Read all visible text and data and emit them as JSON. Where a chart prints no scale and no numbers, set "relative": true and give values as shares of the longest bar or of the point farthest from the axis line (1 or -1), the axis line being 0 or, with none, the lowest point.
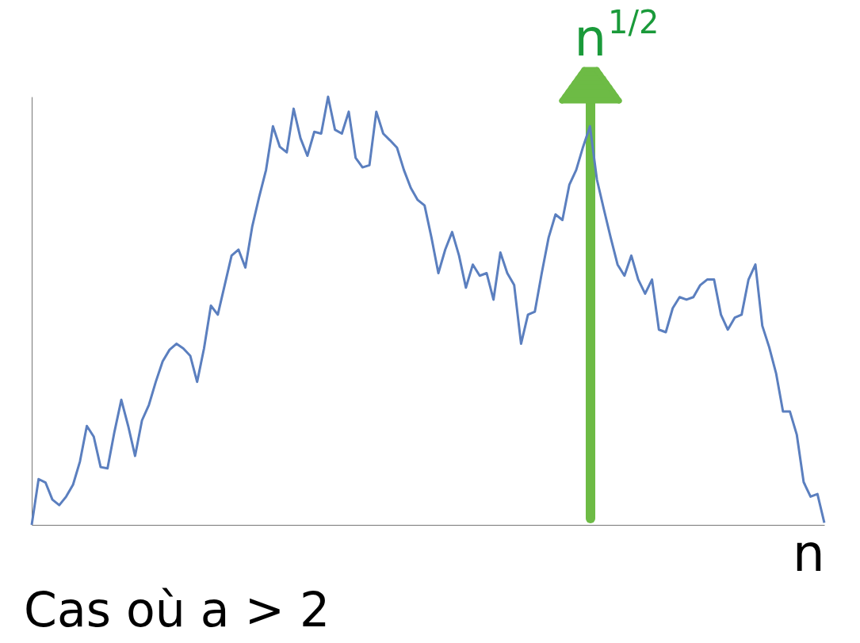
{
  "chart_data": {
    "type": "line",
    "relative": true,
    "xlabel": "n",
    "categories": [
      null,
      null,
      null,
      null,
      null,
      null,
      null,
      null,
      null,
      null,
      null,
      null,
      null,
      null,
      null,
      null,
      null,
      null,
      null,
      null,
      null,
      null,
      null,
      null,
      null,
      null,
      null,
      null,
      null,
      null,
      null,
      null,
      null,
      null,
      null,
      null,
      null,
      null,
      null,
      null,
      null,
      null,
      null,
      null,
      null,
      null,
      null,
      null,
      null,
      null,
      null,
      null,
      null,
      null,
      null,
      null,
      null,
      null,
      null,
      null,
      null,
      null,
      null,
      null,
      null,
      null,
      null,
      null,
      null,
      null,
      null,
      null,
      null,
      null,
      null,
      null,
      null,
      null,
      null,
      null,
      null,
      null,
      null,
      null,
      null,
      null,
      null,
      null,
      null,
      null,
      null,
      null,
      null,
      null,
      null,
      null,
      null,
      null,
      null,
      null,
      null,
      null,
      null,
      null,
      null,
      null,
      null,
      null,
      null,
      null,
      null,
      null,
      null,
      null,
      null,
      null
    ],
    "series": [
      {
        "color": "#5b7fbf",
        "values": [
          0.0,
          0.107,
          0.099,
          0.059,
          0.046,
          0.066,
          0.094,
          0.148,
          0.231,
          0.206,
          0.135,
          0.132,
          0.217,
          0.292,
          0.231,
          0.161,
          0.244,
          0.28,
          0.334,
          0.382,
          0.409,
          0.423,
          0.412,
          0.395,
          0.334,
          0.412,
          0.512,
          0.491,
          0.56,
          0.629,
          0.643,
          0.601,
          0.697,
          0.766,
          0.829,
          0.931,
          0.883,
          0.87,
          0.972,
          0.903,
          0.862,
          0.918,
          0.914,
          1.0,
          0.923,
          0.914,
          0.965,
          0.857,
          0.835,
          0.84,
          0.965,
          0.914,
          0.898,
          0.881,
          0.829,
          0.787,
          0.759,
          0.746,
          0.671,
          0.588,
          0.643,
          0.684,
          0.629,
          0.554,
          0.608,
          0.582,
          0.588,
          0.526,
          0.636,
          0.588,
          0.56,
          0.423,
          0.491,
          0.498,
          0.588,
          0.671,
          0.725,
          0.712,
          0.794,
          0.829,
          0.883,
          0.931,
          0.807,
          0.738,
          0.671,
          0.608,
          0.582,
          0.629,
          0.573,
          0.54,
          0.573,
          0.456,
          0.45,
          0.506,
          0.532,
          0.526,
          0.532,
          0.56,
          0.573,
          0.573,
          0.491,
          0.456,
          0.484,
          0.491,
          0.573,
          0.608,
          0.465,
          0.415,
          0.354,
          0.265,
          0.265,
          0.211,
          0.1,
          0.066,
          0.072,
          0.005
        ]
      }
    ],
    "annotations": [
      "n$^{1/2}$",
      "Cas où a > 2"
    ]
  }
}
